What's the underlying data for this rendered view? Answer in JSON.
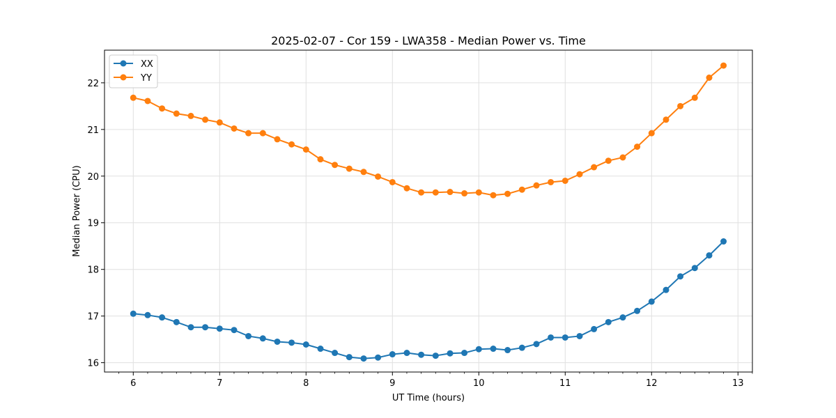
{
  "chart_data": {
    "type": "line",
    "title": "2025-02-07 - Cor 159 - LWA358 - Median Power vs. Time",
    "xlabel": "UT Time (hours)",
    "ylabel": "Median Power (CPU)",
    "xlim": [
      5.667,
      13.167
    ],
    "ylim": [
      15.8,
      22.7
    ],
    "xticks": [
      6,
      7,
      8,
      9,
      10,
      11,
      12,
      13
    ],
    "yticks": [
      16,
      17,
      18,
      19,
      20,
      21,
      22
    ],
    "xtick_labels": [
      "6",
      "7",
      "8",
      "9",
      "10",
      "11",
      "12",
      "13"
    ],
    "ytick_labels": [
      "16",
      "17",
      "18",
      "19",
      "20",
      "21",
      "22"
    ],
    "grid": true,
    "legend_position": "top-left",
    "x": [
      6.0,
      6.167,
      6.333,
      6.5,
      6.667,
      6.833,
      7.0,
      7.167,
      7.333,
      7.5,
      7.667,
      7.833,
      8.0,
      8.167,
      8.333,
      8.5,
      8.667,
      8.833,
      9.0,
      9.167,
      9.333,
      9.5,
      9.667,
      9.833,
      10.0,
      10.167,
      10.333,
      10.5,
      10.667,
      10.833,
      11.0,
      11.167,
      11.333,
      11.5,
      11.667,
      11.833,
      12.0,
      12.167,
      12.333,
      12.5,
      12.667,
      12.833
    ],
    "series": [
      {
        "name": "XX",
        "color": "#1f77b4",
        "values": [
          17.05,
          17.02,
          16.97,
          16.87,
          16.76,
          16.76,
          16.73,
          16.7,
          16.57,
          16.52,
          16.45,
          16.43,
          16.39,
          16.3,
          16.21,
          16.12,
          16.09,
          16.11,
          16.18,
          16.21,
          16.17,
          16.15,
          16.2,
          16.21,
          16.29,
          16.3,
          16.27,
          16.32,
          16.4,
          16.54,
          16.54,
          16.57,
          16.72,
          16.87,
          16.97,
          17.11,
          17.31,
          17.56,
          17.85,
          18.03,
          18.3,
          18.6
        ]
      },
      {
        "name": "YY",
        "color": "#ff7f0e",
        "values": [
          21.68,
          21.61,
          21.45,
          21.34,
          21.29,
          21.21,
          21.15,
          21.02,
          20.92,
          20.92,
          20.79,
          20.68,
          20.57,
          20.36,
          20.24,
          20.16,
          20.09,
          19.99,
          19.87,
          19.74,
          19.65,
          19.65,
          19.66,
          19.63,
          19.65,
          19.59,
          19.62,
          19.71,
          19.8,
          19.87,
          19.9,
          20.04,
          20.19,
          20.33,
          20.4,
          20.63,
          20.92,
          21.21,
          21.5,
          21.68,
          22.11,
          22.37
        ]
      }
    ]
  }
}
